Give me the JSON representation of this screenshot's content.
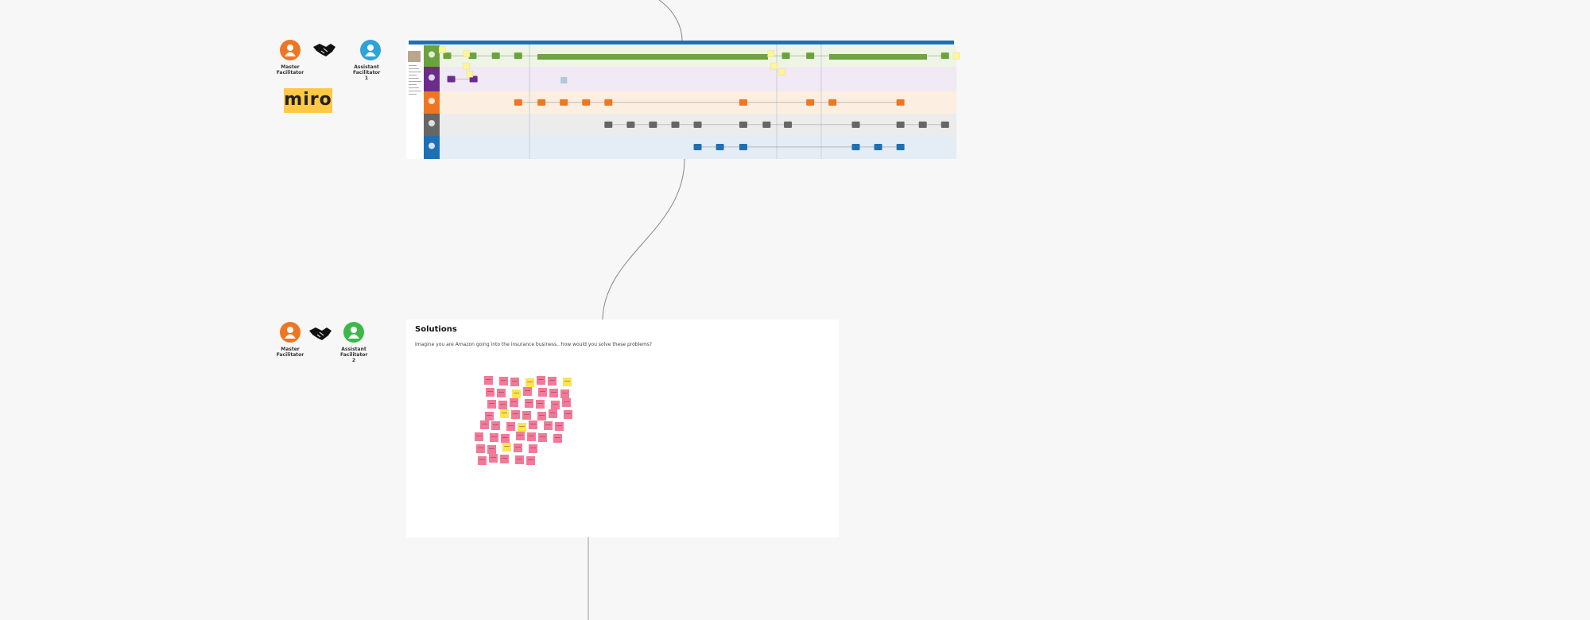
{
  "top_group": {
    "master_label": "Master Facilitator",
    "assistant_label": "Assistant Facilitator 1"
  },
  "logo": "miro",
  "bottom_group": {
    "master_label": "Master Facilitator",
    "assistant_label": "Assistant Facilitator 2"
  },
  "solutions": {
    "title": "Solutions",
    "prompt": "Imagine you are Amazon going into the insurance business.. how would you solve these problems?"
  }
}
